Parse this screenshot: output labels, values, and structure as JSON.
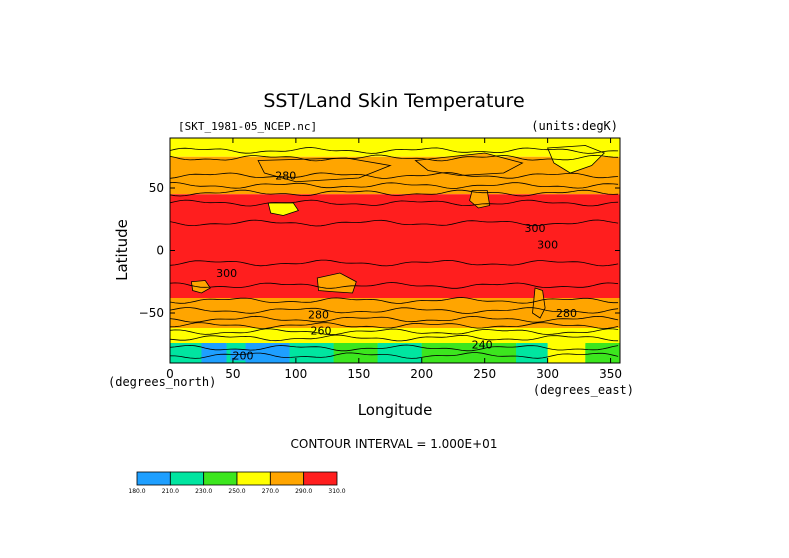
{
  "chart_data": {
    "type": "heatmap",
    "title": "SST/Land Skin Temperature",
    "file_label": "[SKT_1981-05_NCEP.nc]",
    "units_label": "(units:degK)",
    "xlabel": "Longitude",
    "ylabel": "Latitude",
    "x_unit_label": "(degrees_east)",
    "y_unit_label": "(degrees_north)",
    "xlim": [
      0,
      357.5
    ],
    "ylim": [
      -90,
      90
    ],
    "x_ticks": [
      0,
      50,
      100,
      150,
      200,
      250,
      300,
      350
    ],
    "x_tick_labels": [
      "0",
      "50",
      "100",
      "150",
      "200",
      "250",
      "300",
      "350"
    ],
    "y_ticks": [
      50,
      0,
      -50
    ],
    "y_tick_labels": [
      "50",
      "0",
      "−50"
    ],
    "contour_interval_text": "CONTOUR INTERVAL = 1.000E+01",
    "contour_labels": [
      {
        "text": "280",
        "lon": 92,
        "lat": 60
      },
      {
        "text": "300",
        "lon": 300,
        "lat": 5
      },
      {
        "text": "300",
        "lon": 290,
        "lat": 18
      },
      {
        "text": "300",
        "lon": 45,
        "lat": -18
      },
      {
        "text": "280",
        "lon": 118,
        "lat": -51
      },
      {
        "text": "280",
        "lon": 315,
        "lat": -50
      },
      {
        "text": "260",
        "lon": 120,
        "lat": -64
      },
      {
        "text": "240",
        "lon": 248,
        "lat": -75
      },
      {
        "text": "200",
        "lon": 58,
        "lat": -84
      }
    ],
    "temperature_bands": [
      {
        "lat_from": 90,
        "lat_to": 75,
        "value": 265
      },
      {
        "lat_from": 75,
        "lat_to": 45,
        "value": 275
      },
      {
        "lat_from": 45,
        "lat_to": -38,
        "value": 305
      },
      {
        "lat_from": -38,
        "lat_to": -62,
        "value": 285
      },
      {
        "lat_from": -62,
        "lat_to": -75,
        "value": 255
      },
      {
        "lat_from": -75,
        "lat_to": -90,
        "value": 225
      }
    ],
    "colorbar": {
      "levels": [
        "180.0",
        "210.0",
        "230.0",
        "250.0",
        "270.0",
        "290.0",
        "310.0"
      ],
      "colors": [
        "#1e9fff",
        "#00e5a0",
        "#3ce61e",
        "#ffff00",
        "#ffa500",
        "#ff1e1e"
      ]
    },
    "colors": {
      "red": "#ff1e1e",
      "orange": "#ffa500",
      "yellow": "#ffff00",
      "green": "#3ce61e",
      "teal": "#00e5a0",
      "blue": "#1e9fff"
    }
  }
}
